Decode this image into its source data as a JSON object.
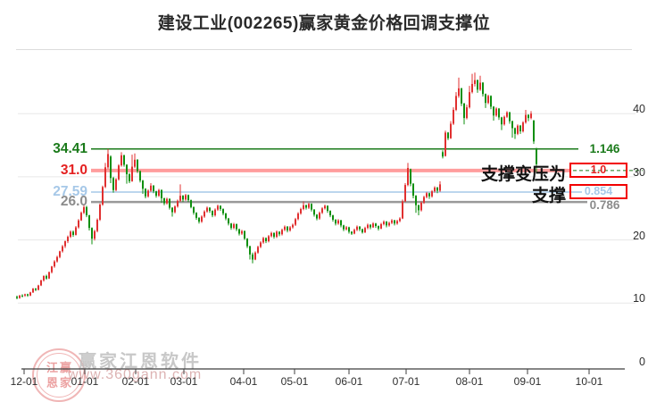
{
  "title": "建设工业(002265)赢家黄金价格回调支撑位",
  "watermark": {
    "seal_chars": [
      "江",
      "赢",
      "恩",
      "家"
    ],
    "line1": "赢家江恩软件",
    "line2": "www.360gann.com"
  },
  "chart_data": {
    "type": "candlestick",
    "symbol": "建设工业",
    "code": "002265",
    "up_color": "#e03030",
    "down_color": "#0e8f0e",
    "grid": true,
    "x_axis": {
      "tick_labels": [
        "12-01",
        "01-01",
        "02-01",
        "03-01",
        "04-01",
        "05-01",
        "06-01",
        "07-01",
        "08-01",
        "09-01",
        "10-01"
      ],
      "tick_x": [
        27,
        95,
        152,
        206,
        273,
        330,
        391,
        455,
        526,
        591,
        660
      ]
    },
    "y_axis": {
      "tick_labels": [
        "40",
        "30",
        "20",
        "10",
        "0"
      ],
      "tick_values": [
        40,
        30,
        20,
        10,
        0
      ],
      "ylim": [
        0,
        49.5
      ],
      "position": "right"
    },
    "support_levels": [
      {
        "price": 34.41,
        "left_label": "34.41",
        "right_label": "1.146",
        "right_text": "",
        "line_color": "#1a7a1a",
        "label_color": "#1a7a1a",
        "line_w": 1.5,
        "line_x2": 648,
        "boxed": false,
        "dashed_ext": true
      },
      {
        "price": 31.0,
        "left_label": "31.0",
        "right_label": "1.0",
        "right_text": "支撑变压为",
        "line_color": "rgba(255,77,77,0.55)",
        "label_color": "#e42020",
        "line_w": 4,
        "line_x2": 638,
        "boxed": true,
        "dashed_ext": true
      },
      {
        "price": 27.59,
        "left_label": "27.59",
        "right_label": "0.854",
        "right_text": "支撑",
        "line_color": "#a6c8e8",
        "label_color": "#a6c8e8",
        "line_w": 1.5,
        "line_x2": 652,
        "boxed": true,
        "dashed_ext": false
      },
      {
        "price": 26.0,
        "left_label": "26.0",
        "right_label": "0.786",
        "right_text": "",
        "line_color": "#999999",
        "label_color": "#8c8c8c",
        "line_w": 2.5,
        "line_x2": 658,
        "boxed": false,
        "dashed_ext": false
      }
    ],
    "box_border_color": "#f20000",
    "candles": [
      [
        11.0,
        11.2,
        10.6,
        10.8
      ],
      [
        10.8,
        11.3,
        10.7,
        11.2
      ],
      [
        11.2,
        11.4,
        10.9,
        11.1
      ],
      [
        11.2,
        11.5,
        11.0,
        11.4
      ],
      [
        11.4,
        11.5,
        11.0,
        11.2
      ],
      [
        11.2,
        11.8,
        11.1,
        11.7
      ],
      [
        11.7,
        12.4,
        11.6,
        12.3
      ],
      [
        12.3,
        12.4,
        11.9,
        12.1
      ],
      [
        12.1,
        12.9,
        12.0,
        12.8
      ],
      [
        12.8,
        13.7,
        12.7,
        13.6
      ],
      [
        13.6,
        14.4,
        13.4,
        14.3
      ],
      [
        14.3,
        14.5,
        13.7,
        13.9
      ],
      [
        13.9,
        15.0,
        13.8,
        14.9
      ],
      [
        14.9,
        15.9,
        14.7,
        15.8
      ],
      [
        15.8,
        16.8,
        15.6,
        16.6
      ],
      [
        16.6,
        17.5,
        16.4,
        17.3
      ],
      [
        17.3,
        18.3,
        17.1,
        18.2
      ],
      [
        18.2,
        19.2,
        18.0,
        19.0
      ],
      [
        19.0,
        19.9,
        18.7,
        19.8
      ],
      [
        19.8,
        20.7,
        19.5,
        20.5
      ],
      [
        20.5,
        21.5,
        20.3,
        21.3
      ],
      [
        21.3,
        21.5,
        20.5,
        20.8
      ],
      [
        20.8,
        22.2,
        20.7,
        22.0
      ],
      [
        22.0,
        23.3,
        21.8,
        23.1
      ],
      [
        23.1,
        24.5,
        23.0,
        24.3
      ],
      [
        24.3,
        25.5,
        24.1,
        25.2
      ],
      [
        25.2,
        25.4,
        23.6,
        23.9
      ],
      [
        23.9,
        24.0,
        21.5,
        21.9
      ],
      [
        21.9,
        22.0,
        19.3,
        20.2
      ],
      [
        20.2,
        21.6,
        19.9,
        21.4
      ],
      [
        21.4,
        23.4,
        21.2,
        23.2
      ],
      [
        23.2,
        25.8,
        23.0,
        25.6
      ],
      [
        25.6,
        28.6,
        25.4,
        28.4
      ],
      [
        28.4,
        32.2,
        28.2,
        31.5
      ],
      [
        31.5,
        34.4,
        31.2,
        33.6
      ],
      [
        33.2,
        33.4,
        29.0,
        29.8
      ],
      [
        29.8,
        30.0,
        27.5,
        27.9
      ],
      [
        27.9,
        29.8,
        27.7,
        29.6
      ],
      [
        29.6,
        32.0,
        29.4,
        31.8
      ],
      [
        31.8,
        33.9,
        31.6,
        33.4
      ],
      [
        33.4,
        33.5,
        31.6,
        31.9
      ],
      [
        31.9,
        32.0,
        28.9,
        30.4
      ],
      [
        30.4,
        30.6,
        29.0,
        29.3
      ],
      [
        29.3,
        33.5,
        29.2,
        31.6
      ],
      [
        31.6,
        33.7,
        31.4,
        32.7
      ],
      [
        32.7,
        32.8,
        30.6,
        30.9
      ],
      [
        30.9,
        31.0,
        29.1,
        29.4
      ],
      [
        29.4,
        29.5,
        27.3,
        28.1
      ],
      [
        28.1,
        28.2,
        26.6,
        26.9
      ],
      [
        26.9,
        28.0,
        26.7,
        27.8
      ],
      [
        27.8,
        29.0,
        27.6,
        28.6
      ],
      [
        28.6,
        28.7,
        27.4,
        27.7
      ],
      [
        27.7,
        27.8,
        26.7,
        27.0
      ],
      [
        27.0,
        28.1,
        26.8,
        27.9
      ],
      [
        27.9,
        28.0,
        25.9,
        26.6
      ],
      [
        26.6,
        26.7,
        25.5,
        25.8
      ],
      [
        25.8,
        26.7,
        25.6,
        26.5
      ],
      [
        26.5,
        26.6,
        24.8,
        25.1
      ],
      [
        25.1,
        25.2,
        23.7,
        24.4
      ],
      [
        24.4,
        25.5,
        24.2,
        25.3
      ],
      [
        25.3,
        26.4,
        25.1,
        26.2
      ],
      [
        26.2,
        28.8,
        26.0,
        27.0
      ],
      [
        27.0,
        27.1,
        26.0,
        26.4
      ],
      [
        26.4,
        27.3,
        26.2,
        27.1
      ],
      [
        27.1,
        27.2,
        26.0,
        26.3
      ],
      [
        26.3,
        26.4,
        25.0,
        25.2
      ],
      [
        25.2,
        25.3,
        24.0,
        24.3
      ],
      [
        24.3,
        24.4,
        23.2,
        23.5
      ],
      [
        23.5,
        23.6,
        22.6,
        22.9
      ],
      [
        22.9,
        23.9,
        22.7,
        23.7
      ],
      [
        23.7,
        24.7,
        23.5,
        24.5
      ],
      [
        24.5,
        25.3,
        24.3,
        25.1
      ],
      [
        25.1,
        25.2,
        24.3,
        24.6
      ],
      [
        24.6,
        24.7,
        23.6,
        23.9
      ],
      [
        23.9,
        25.0,
        23.7,
        24.8
      ],
      [
        24.8,
        25.6,
        24.6,
        25.4
      ],
      [
        25.4,
        25.5,
        24.6,
        24.9
      ],
      [
        24.9,
        25.0,
        23.9,
        24.2
      ],
      [
        24.2,
        24.3,
        23.1,
        23.4
      ],
      [
        23.4,
        23.5,
        22.3,
        22.6
      ],
      [
        22.6,
        22.7,
        21.6,
        21.9
      ],
      [
        21.9,
        22.7,
        21.7,
        22.5
      ],
      [
        22.5,
        22.6,
        21.4,
        21.7
      ],
      [
        21.7,
        21.8,
        20.7,
        21.0
      ],
      [
        21.0,
        21.6,
        20.8,
        21.4
      ],
      [
        21.4,
        21.5,
        20.0,
        20.2
      ],
      [
        20.2,
        20.3,
        18.7,
        19.0
      ],
      [
        19.0,
        19.1,
        16.9,
        17.7
      ],
      [
        17.7,
        18.0,
        16.3,
        16.9
      ],
      [
        16.9,
        18.2,
        16.8,
        18.0
      ],
      [
        18.0,
        19.1,
        17.8,
        18.9
      ],
      [
        18.9,
        19.8,
        18.7,
        19.6
      ],
      [
        19.6,
        20.5,
        19.4,
        20.3
      ],
      [
        20.3,
        20.4,
        19.5,
        19.8
      ],
      [
        19.8,
        20.8,
        19.6,
        20.6
      ],
      [
        20.6,
        21.3,
        20.4,
        21.1
      ],
      [
        21.1,
        21.2,
        20.2,
        20.5
      ],
      [
        20.5,
        21.5,
        20.3,
        21.3
      ],
      [
        21.3,
        21.4,
        20.6,
        20.9
      ],
      [
        20.9,
        21.8,
        20.7,
        21.6
      ],
      [
        21.6,
        22.3,
        21.4,
        22.1
      ],
      [
        22.1,
        22.2,
        21.2,
        21.5
      ],
      [
        21.5,
        22.2,
        21.3,
        22.0
      ],
      [
        22.0,
        22.6,
        21.8,
        22.4
      ],
      [
        22.4,
        23.5,
        22.2,
        23.3
      ],
      [
        23.3,
        24.4,
        23.1,
        24.2
      ],
      [
        24.2,
        25.1,
        24.0,
        24.9
      ],
      [
        24.9,
        26.1,
        24.7,
        25.5
      ],
      [
        25.5,
        25.6,
        24.8,
        25.1
      ],
      [
        25.1,
        25.9,
        24.9,
        25.7
      ],
      [
        25.7,
        25.8,
        24.5,
        24.8
      ],
      [
        24.8,
        24.9,
        23.7,
        24.0
      ],
      [
        24.0,
        24.1,
        23.1,
        23.4
      ],
      [
        23.4,
        24.5,
        23.2,
        24.3
      ],
      [
        24.3,
        25.2,
        24.1,
        25.0
      ],
      [
        25.0,
        25.6,
        24.8,
        25.4
      ],
      [
        25.4,
        25.5,
        24.3,
        24.6
      ],
      [
        24.6,
        24.7,
        23.6,
        23.9
      ],
      [
        23.9,
        24.0,
        22.9,
        23.2
      ],
      [
        23.2,
        23.3,
        22.3,
        22.6
      ],
      [
        22.6,
        23.3,
        22.4,
        23.1
      ],
      [
        23.1,
        23.2,
        22.0,
        22.3
      ],
      [
        22.3,
        22.4,
        21.4,
        21.7
      ],
      [
        21.7,
        22.2,
        21.5,
        22.0
      ],
      [
        22.0,
        22.1,
        21.0,
        21.3
      ],
      [
        21.3,
        21.4,
        20.8,
        21.0
      ],
      [
        21.0,
        21.8,
        20.9,
        21.6
      ],
      [
        21.6,
        22.3,
        21.4,
        22.1
      ],
      [
        22.1,
        22.2,
        21.4,
        21.7
      ],
      [
        21.7,
        21.8,
        21.0,
        21.2
      ],
      [
        21.2,
        22.1,
        21.1,
        21.9
      ],
      [
        21.9,
        22.6,
        21.7,
        22.4
      ],
      [
        22.4,
        22.5,
        21.7,
        22.0
      ],
      [
        22.0,
        22.8,
        21.9,
        22.6
      ],
      [
        22.6,
        22.7,
        21.9,
        22.2
      ],
      [
        22.2,
        22.3,
        21.5,
        21.8
      ],
      [
        21.8,
        22.7,
        21.7,
        22.5
      ],
      [
        22.5,
        23.1,
        22.3,
        22.9
      ],
      [
        22.9,
        23.0,
        22.0,
        22.3
      ],
      [
        22.3,
        22.9,
        22.1,
        22.7
      ],
      [
        22.7,
        23.3,
        22.5,
        23.1
      ],
      [
        23.1,
        23.2,
        22.3,
        22.6
      ],
      [
        22.6,
        23.2,
        22.4,
        23.0
      ],
      [
        23.0,
        23.6,
        22.8,
        23.4
      ],
      [
        23.4,
        26.4,
        23.3,
        26.1
      ],
      [
        26.1,
        29.0,
        26.0,
        28.7
      ],
      [
        28.7,
        32.2,
        28.5,
        31.4
      ],
      [
        31.2,
        31.3,
        28.5,
        28.9
      ],
      [
        28.9,
        29.0,
        26.6,
        27.0
      ],
      [
        27.0,
        27.1,
        24.3,
        25.5
      ],
      [
        25.5,
        25.6,
        23.9,
        24.7
      ],
      [
        24.7,
        26.1,
        24.5,
        25.9
      ],
      [
        25.9,
        27.0,
        25.7,
        26.8
      ],
      [
        26.8,
        27.6,
        26.6,
        27.4
      ],
      [
        27.4,
        27.5,
        26.5,
        26.9
      ],
      [
        26.9,
        27.9,
        26.7,
        27.7
      ],
      [
        27.7,
        28.5,
        27.5,
        28.3
      ],
      [
        28.3,
        28.4,
        27.4,
        27.8
      ],
      [
        27.8,
        29.3,
        27.6,
        28.8
      ],
      [
        33.9,
        34.2,
        32.9,
        33.2
      ],
      [
        33.3,
        37.3,
        33.2,
        37.0
      ],
      [
        37.0,
        37.1,
        35.8,
        36.1
      ],
      [
        36.1,
        38.8,
        36.0,
        38.4
      ],
      [
        38.4,
        41.0,
        38.2,
        40.6
      ],
      [
        40.6,
        43.4,
        40.4,
        42.8
      ],
      [
        42.8,
        45.7,
        42.5,
        44.0
      ],
      [
        44.0,
        44.1,
        41.2,
        41.6
      ],
      [
        41.6,
        41.7,
        38.3,
        39.3
      ],
      [
        39.3,
        41.4,
        39.1,
        41.0
      ],
      [
        41.0,
        44.4,
        40.8,
        43.4
      ],
      [
        43.4,
        46.3,
        43.2,
        44.7
      ],
      [
        44.7,
        46.5,
        44.3,
        45.3
      ],
      [
        45.3,
        45.4,
        43.3,
        43.8
      ],
      [
        43.8,
        46.0,
        43.6,
        44.9
      ],
      [
        44.9,
        45.0,
        42.7,
        43.1
      ],
      [
        43.1,
        43.2,
        40.9,
        41.7
      ],
      [
        41.7,
        43.0,
        41.5,
        42.8
      ],
      [
        42.8,
        42.9,
        40.7,
        41.1
      ],
      [
        41.1,
        41.2,
        38.9,
        39.7
      ],
      [
        39.7,
        41.0,
        39.5,
        40.8
      ],
      [
        40.8,
        40.9,
        39.0,
        39.4
      ],
      [
        39.4,
        39.5,
        37.4,
        38.3
      ],
      [
        38.3,
        39.7,
        38.1,
        39.5
      ],
      [
        39.5,
        40.4,
        39.3,
        40.2
      ],
      [
        40.2,
        40.3,
        38.4,
        38.8
      ],
      [
        38.8,
        38.9,
        36.2,
        37.7
      ],
      [
        37.7,
        37.8,
        36.0,
        36.8
      ],
      [
        36.8,
        38.3,
        36.6,
        38.1
      ],
      [
        38.1,
        38.2,
        36.8,
        37.2
      ],
      [
        37.2,
        38.8,
        37.0,
        38.6
      ],
      [
        38.6,
        40.6,
        38.4,
        39.8
      ],
      [
        39.8,
        39.9,
        38.8,
        39.3
      ],
      [
        39.3,
        40.4,
        39.1,
        40.0
      ],
      [
        38.9,
        39.0,
        35.2,
        35.6
      ],
      [
        34.3,
        34.6,
        30.5,
        32.0
      ]
    ]
  }
}
